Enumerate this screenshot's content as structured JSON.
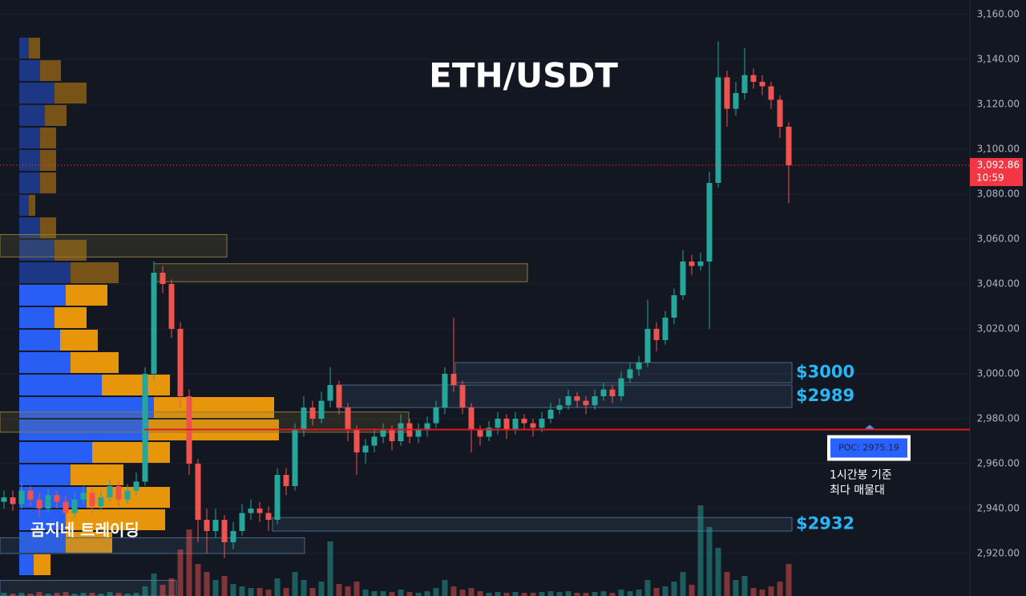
{
  "chart_data": {
    "type": "candlestick",
    "title": "ETH/USDT",
    "up_color": "#26a69a",
    "down_color": "#ef5350",
    "ylim": [
      2901.07,
      3166.43
    ],
    "yticks": [
      {
        "value": 3160,
        "label": "3,160.00"
      },
      {
        "value": 3140,
        "label": "3,140.00"
      },
      {
        "value": 3120,
        "label": "3,120.00"
      },
      {
        "value": 3100,
        "label": "3,100.00"
      },
      {
        "value": 3080,
        "label": "3,080.00"
      },
      {
        "value": 3060,
        "label": "3,060.00"
      },
      {
        "value": 3040,
        "label": "3,040.00"
      },
      {
        "value": 3020,
        "label": "3,020.00"
      },
      {
        "value": 3000,
        "label": "3,000.00"
      },
      {
        "value": 2980,
        "label": "2,980.00"
      },
      {
        "value": 2960,
        "label": "2,960.00"
      },
      {
        "value": 2940,
        "label": "2,940.00"
      },
      {
        "value": 2920,
        "label": "2,920.00"
      }
    ],
    "grid": true,
    "candles": [
      [
        2943,
        2948,
        2940,
        2945
      ],
      [
        2945,
        2948,
        2939,
        2942
      ],
      [
        2942,
        2951,
        2940,
        2948
      ],
      [
        2948,
        2950,
        2941,
        2944
      ],
      [
        2944,
        2947,
        2936,
        2940
      ],
      [
        2940,
        2949,
        2938,
        2946
      ],
      [
        2946,
        2948,
        2940,
        2943
      ],
      [
        2943,
        2946,
        2934,
        2938
      ],
      [
        2938,
        2947,
        2936,
        2944
      ],
      [
        2944,
        2950,
        2942,
        2947
      ],
      [
        2947,
        2949,
        2938,
        2941
      ],
      [
        2941,
        2948,
        2939,
        2945
      ],
      [
        2945,
        2953,
        2943,
        2950
      ],
      [
        2950,
        2952,
        2941,
        2944
      ],
      [
        2944,
        2951,
        2942,
        2948
      ],
      [
        2948,
        2956,
        2946,
        2952
      ],
      [
        2952,
        3003,
        2950,
        3000
      ],
      [
        3000,
        3050,
        2997,
        3045
      ],
      [
        3045,
        3048,
        3036,
        3040
      ],
      [
        3040,
        3042,
        3016,
        3020
      ],
      [
        3020,
        3023,
        2985,
        2990
      ],
      [
        2990,
        2993,
        2955,
        2960
      ],
      [
        2960,
        2962,
        2925,
        2935
      ],
      [
        2935,
        2940,
        2920,
        2930
      ],
      [
        2930,
        2940,
        2927,
        2935
      ],
      [
        2935,
        2937,
        2918,
        2925
      ],
      [
        2925,
        2934,
        2922,
        2930
      ],
      [
        2930,
        2942,
        2928,
        2938
      ],
      [
        2938,
        2944,
        2935,
        2940
      ],
      [
        2940,
        2943,
        2934,
        2938
      ],
      [
        2938,
        2941,
        2930,
        2935
      ],
      [
        2935,
        2958,
        2933,
        2955
      ],
      [
        2955,
        2958,
        2946,
        2950
      ],
      [
        2950,
        2978,
        2948,
        2975
      ],
      [
        2975,
        2990,
        2972,
        2985
      ],
      [
        2985,
        2988,
        2977,
        2980
      ],
      [
        2980,
        2992,
        2978,
        2988
      ],
      [
        2988,
        3003,
        2985,
        2995
      ],
      [
        2995,
        2997,
        2982,
        2985
      ],
      [
        2985,
        2987,
        2970,
        2975
      ],
      [
        2975,
        2977,
        2955,
        2965
      ],
      [
        2965,
        2971,
        2960,
        2968
      ],
      [
        2968,
        2975,
        2965,
        2972
      ],
      [
        2972,
        2978,
        2969,
        2975
      ],
      [
        2975,
        2977,
        2966,
        2970
      ],
      [
        2970,
        2982,
        2968,
        2978
      ],
      [
        2978,
        2980,
        2969,
        2972
      ],
      [
        2972,
        2978,
        2969,
        2975
      ],
      [
        2975,
        2981,
        2972,
        2978
      ],
      [
        2978,
        2988,
        2976,
        2985
      ],
      [
        2985,
        3003,
        2982,
        3000
      ],
      [
        3000,
        3025,
        2992,
        2995
      ],
      [
        2995,
        2997,
        2982,
        2985
      ],
      [
        2985,
        2987,
        2965,
        2975
      ],
      [
        2975,
        2977,
        2968,
        2972
      ],
      [
        2972,
        2979,
        2970,
        2976
      ],
      [
        2976,
        2983,
        2973,
        2980
      ],
      [
        2980,
        2982,
        2971,
        2975
      ],
      [
        2975,
        2983,
        2973,
        2980
      ],
      [
        2980,
        2982,
        2975,
        2978
      ],
      [
        2978,
        2980,
        2972,
        2976
      ],
      [
        2976,
        2983,
        2974,
        2980
      ],
      [
        2980,
        2987,
        2978,
        2984
      ],
      [
        2984,
        2989,
        2982,
        2986
      ],
      [
        2986,
        2993,
        2984,
        2990
      ],
      [
        2990,
        2992,
        2985,
        2988
      ],
      [
        2988,
        2990,
        2982,
        2986
      ],
      [
        2986,
        2993,
        2984,
        2990
      ],
      [
        2990,
        2996,
        2988,
        2993
      ],
      [
        2993,
        2995,
        2987,
        2990
      ],
      [
        2990,
        3001,
        2988,
        2998
      ],
      [
        2998,
        3005,
        2996,
        3002
      ],
      [
        3002,
        3008,
        2999,
        3005
      ],
      [
        3005,
        3033,
        3003,
        3020
      ],
      [
        3020,
        3023,
        3010,
        3015
      ],
      [
        3015,
        3028,
        3013,
        3025
      ],
      [
        3025,
        3038,
        3022,
        3035
      ],
      [
        3035,
        3055,
        3033,
        3050
      ],
      [
        3050,
        3053,
        3044,
        3048
      ],
      [
        3048,
        3054,
        3046,
        3050
      ],
      [
        3050,
        3090,
        3020,
        3085
      ],
      [
        3085,
        3148,
        3083,
        3132
      ],
      [
        3132,
        3135,
        3110,
        3118
      ],
      [
        3118,
        3130,
        3115,
        3125
      ],
      [
        3125,
        3145,
        3122,
        3133
      ],
      [
        3133,
        3136,
        3127,
        3130
      ],
      [
        3130,
        3133,
        3124,
        3128
      ],
      [
        3128,
        3130,
        3118,
        3122
      ],
      [
        3122,
        3124,
        3105,
        3110
      ],
      [
        3110,
        3112,
        3076,
        3092.86
      ]
    ],
    "volume": [
      4,
      3,
      4,
      3,
      5,
      3,
      4,
      5,
      3,
      4,
      4,
      3,
      5,
      4,
      3,
      4,
      12,
      28,
      14,
      22,
      58,
      83,
      40,
      30,
      20,
      25,
      15,
      12,
      10,
      10,
      8,
      22,
      10,
      30,
      20,
      10,
      18,
      68,
      15,
      12,
      18,
      8,
      6,
      6,
      5,
      8,
      5,
      4,
      6,
      10,
      20,
      12,
      8,
      10,
      6,
      4,
      5,
      4,
      5,
      4,
      4,
      5,
      6,
      5,
      6,
      4,
      4,
      5,
      6,
      4,
      8,
      6,
      8,
      20,
      10,
      12,
      18,
      30,
      14,
      113,
      86,
      60,
      30,
      20,
      25,
      10,
      8,
      12,
      18,
      40
    ],
    "last_price": {
      "value": 3092.86,
      "label": "3,092.86"
    },
    "countdown": "10:59",
    "poc": {
      "value": 2975.19,
      "label": "POC: 2975.19"
    },
    "poc_note": [
      "1시간봉 기준",
      "최다 매물대"
    ],
    "zones": [
      {
        "label": "$3000",
        "range": [
          2996,
          3005
        ]
      },
      {
        "label": "$2989",
        "range": [
          2985,
          2995
        ]
      },
      {
        "label": "$2932",
        "range": [
          2930,
          2936
        ]
      },
      {
        "range": [
          3052,
          3062
        ]
      },
      {
        "range": [
          3041,
          3049
        ]
      },
      {
        "range": [
          2974,
          2983
        ]
      },
      {
        "range": [
          2920,
          2927
        ]
      },
      {
        "range": [
          2901.07,
          2908
        ]
      }
    ],
    "volume_profile": {
      "prices": [
        3145,
        3135,
        3125,
        3115,
        3105,
        3095,
        3085,
        3075,
        3065,
        3055,
        3045,
        3035,
        3025,
        3015,
        3005,
        2995,
        2985,
        2975,
        2965,
        2955,
        2945,
        2935,
        2925,
        2915
      ],
      "buy": [
        12,
        26,
        44,
        32,
        26,
        26,
        26,
        12,
        26,
        44,
        64,
        58,
        44,
        51,
        64,
        103,
        168,
        161,
        91,
        64,
        84,
        58,
        58,
        18
      ],
      "sell": [
        14,
        26,
        40,
        27,
        20,
        20,
        20,
        8,
        20,
        40,
        60,
        52,
        40,
        47,
        60,
        85,
        150,
        163,
        97,
        66,
        104,
        124,
        58,
        21
      ]
    },
    "watermark": "곰지네 트레이딩"
  }
}
